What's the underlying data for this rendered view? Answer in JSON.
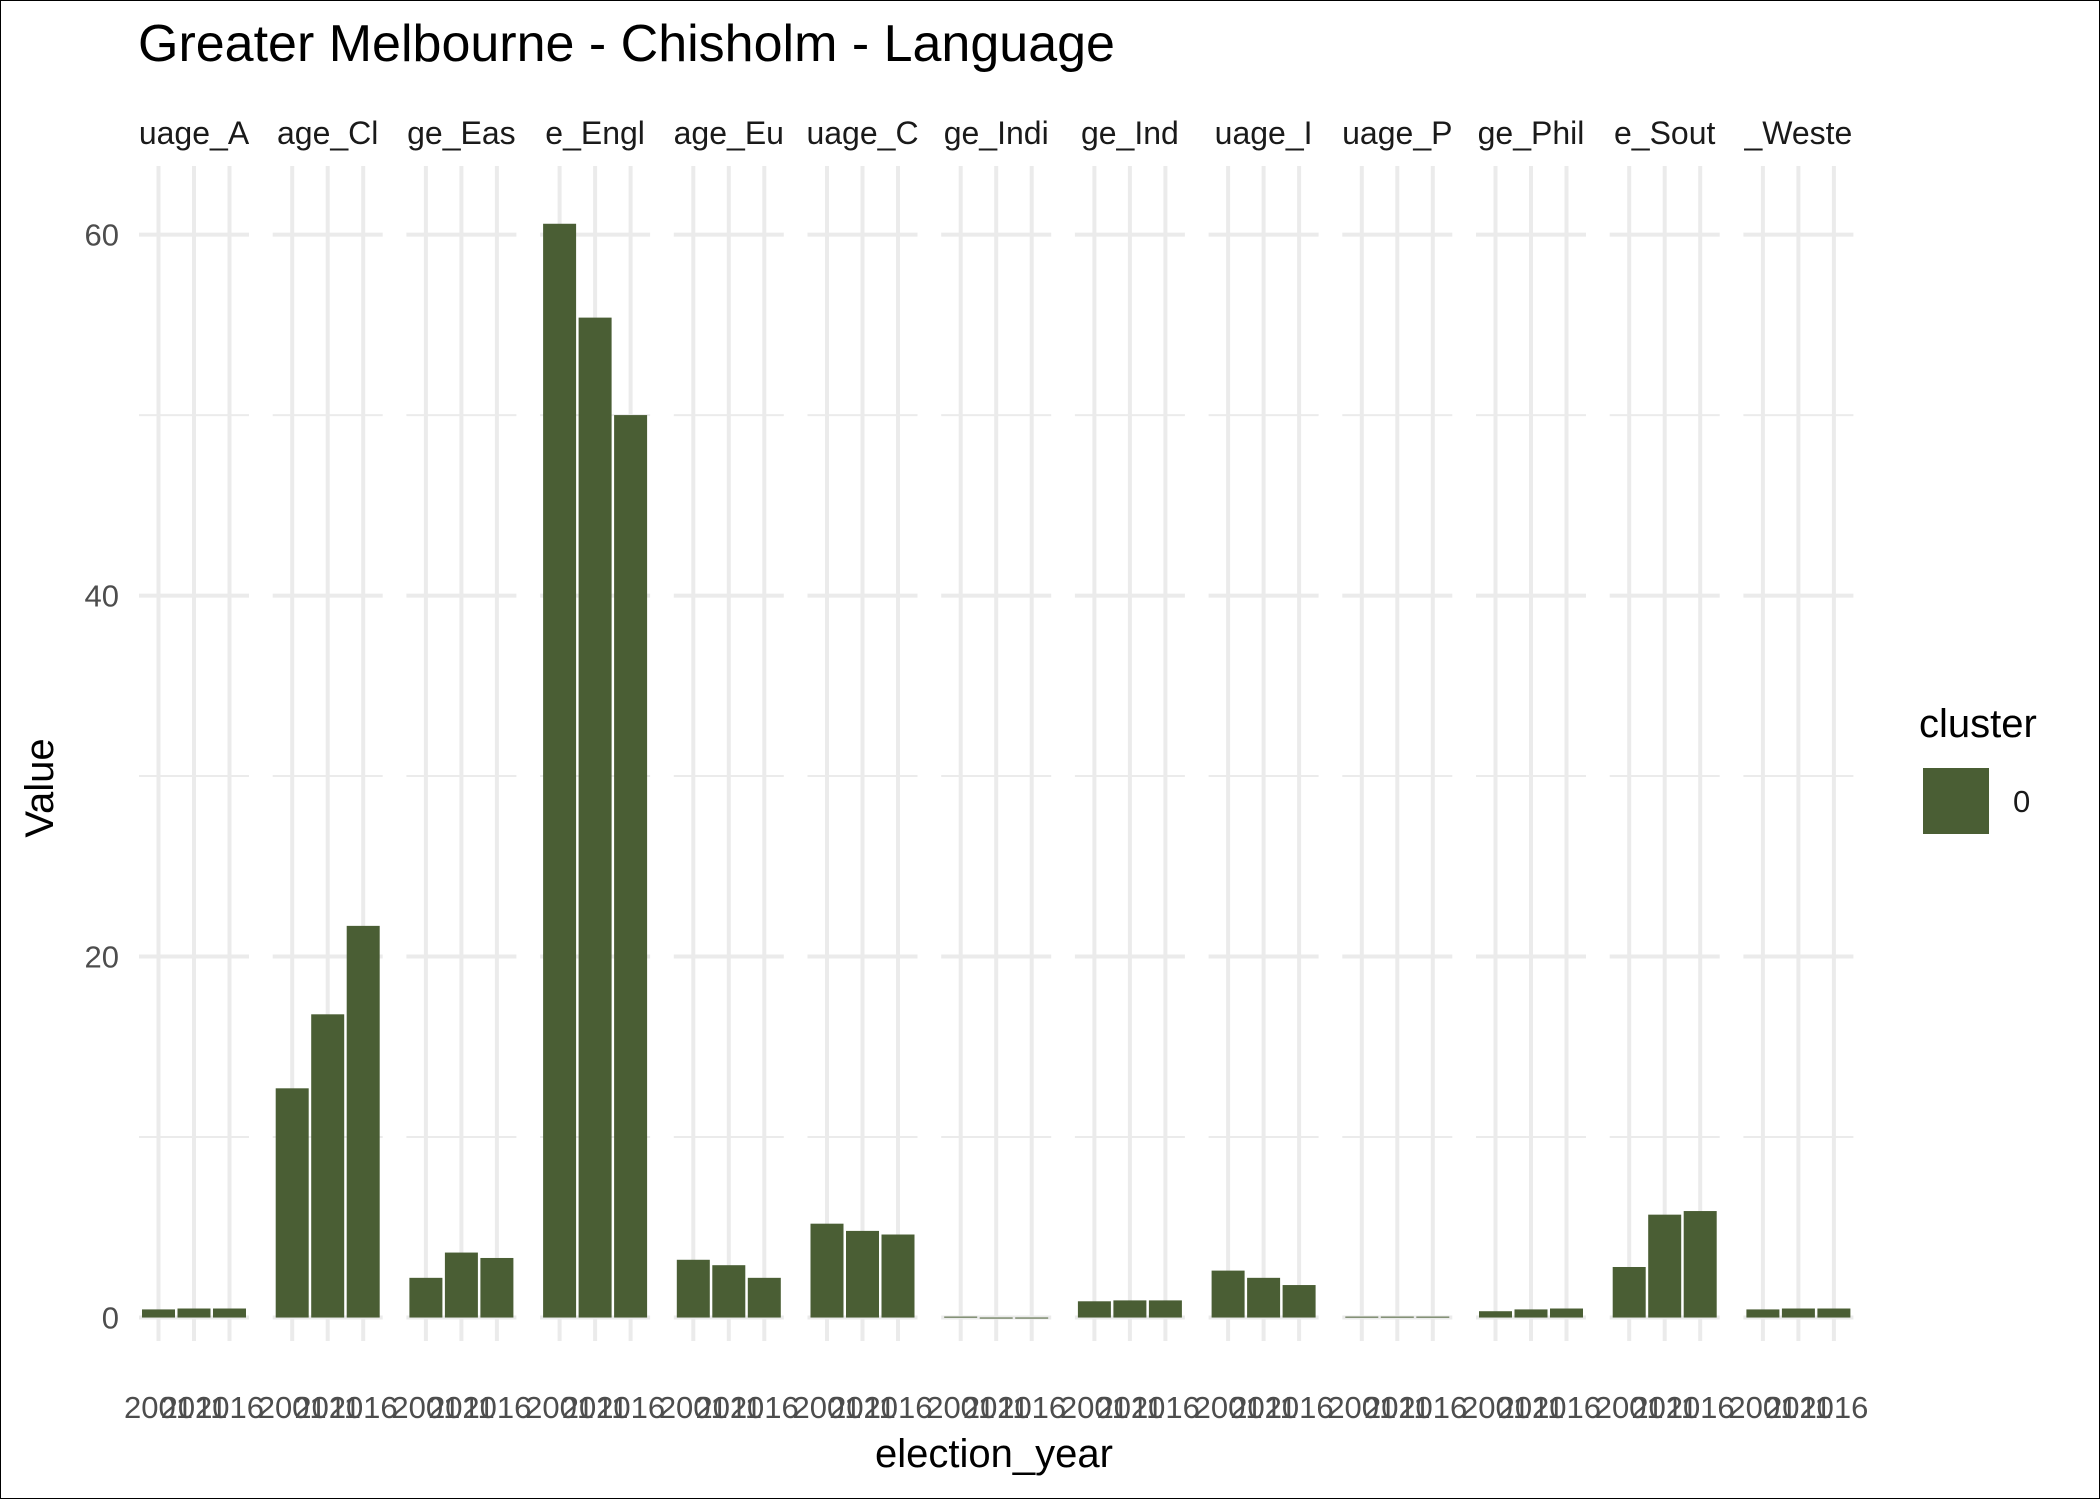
{
  "chart_data": {
    "type": "bar",
    "title": "Greater Melbourne - Chisholm - Language",
    "xlabel": "election_year",
    "ylabel": "Value",
    "ylim": [
      -1.3,
      63.8
    ],
    "yticks": [
      0,
      20,
      40,
      60
    ],
    "grid": true,
    "legend": {
      "title": "cluster",
      "position": "right",
      "entries": [
        {
          "label": "0",
          "color": "#4a5e34"
        }
      ]
    },
    "categories": [
      "2001",
      "2011",
      "2016"
    ],
    "panels": [
      {
        "strip": "uage_A",
        "values": [
          0.45,
          0.5,
          0.5
        ]
      },
      {
        "strip": "age_Cl",
        "values": [
          12.7,
          16.8,
          21.7
        ]
      },
      {
        "strip": "ge_Eas",
        "values": [
          2.2,
          3.6,
          3.3
        ]
      },
      {
        "strip": "e_Engl",
        "values": [
          60.6,
          55.4,
          50.0
        ]
      },
      {
        "strip": "age_Eu",
        "values": [
          3.2,
          2.9,
          2.2
        ]
      },
      {
        "strip": "uage_C",
        "values": [
          5.2,
          4.8,
          4.6
        ]
      },
      {
        "strip": "ge_Indi",
        "values": [
          0.05,
          0.0,
          0.0
        ]
      },
      {
        "strip": "ge_Ind",
        "values": [
          0.9,
          0.95,
          0.95
        ]
      },
      {
        "strip": "uage_I",
        "values": [
          2.6,
          2.2,
          1.8
        ]
      },
      {
        "strip": "uage_P",
        "values": [
          0.05,
          0.05,
          0.05
        ]
      },
      {
        "strip": "ge_Phil",
        "values": [
          0.35,
          0.45,
          0.5
        ]
      },
      {
        "strip": "e_Sout",
        "values": [
          2.8,
          5.7,
          5.9
        ]
      },
      {
        "strip": "_Weste",
        "values": [
          0.45,
          0.5,
          0.5
        ]
      }
    ]
  }
}
